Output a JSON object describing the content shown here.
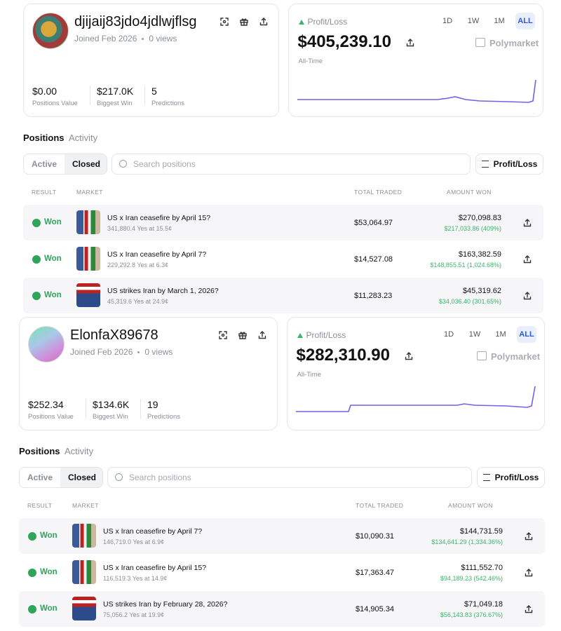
{
  "profiles": [
    {
      "username": "djijaij83jdo4jdlwjflsg",
      "joined": "Joined Feb 2026",
      "views": "0 views",
      "stats": [
        {
          "value": "$0.00",
          "label": "Positions Value"
        },
        {
          "value": "$217.0K",
          "label": "Biggest Win"
        },
        {
          "value": "5",
          "label": "Predictions"
        }
      ],
      "pnl": {
        "label": "Profit/Loss",
        "value": "$405,239.10",
        "brand": "Polymarket",
        "caption": "All-Time",
        "timeframes": [
          "1D",
          "1W",
          "1M",
          "ALL"
        ]
      },
      "tabs": [
        "Positions",
        "Activity"
      ],
      "filters": [
        "Active",
        "Closed"
      ],
      "search": "Search positions",
      "sort": "Profit/Loss",
      "headers": [
        "RESULT",
        "MARKET",
        "TOTAL TRADED",
        "AMOUNT WON"
      ],
      "rows": [
        {
          "result": "Won",
          "title": "US x Iran ceasefire by April 15?",
          "detail": "341,880.4 Yes at 15.5¢",
          "total": "$53,064.97",
          "amount": "$270,098.83",
          "profit": "$217,033.86 (409%)"
        },
        {
          "result": "Won",
          "title": "US x Iran ceasefire by April 7?",
          "detail": "229,292.8 Yes at 6.3¢",
          "total": "$14,527.08",
          "amount": "$163,382.59",
          "profit": "$148,855.51 (1,024.68%)"
        },
        {
          "result": "Won",
          "title": "US strikes Iran by March 1, 2026?",
          "detail": "45,319.6 Yes at 24.9¢",
          "total": "$11,283.23",
          "amount": "$45,319.62",
          "profit": "$34,036.40 (301.65%)"
        }
      ]
    },
    {
      "username": "ElonfaX89678",
      "joined": "Joined Feb 2026",
      "views": "0 views",
      "stats": [
        {
          "value": "$252.34",
          "label": "Positions Value"
        },
        {
          "value": "$134.6K",
          "label": "Biggest Win"
        },
        {
          "value": "19",
          "label": "Predictions"
        }
      ],
      "pnl": {
        "label": "Profit/Loss",
        "value": "$282,310.90",
        "brand": "Polymarket",
        "caption": "All-Time",
        "timeframes": [
          "1D",
          "1W",
          "1M",
          "ALL"
        ]
      },
      "tabs": [
        "Positions",
        "Activity"
      ],
      "filters": [
        "Active",
        "Closed"
      ],
      "search": "Search positions",
      "sort": "Profit/Loss",
      "headers": [
        "RESULT",
        "MARKET",
        "TOTAL TRADED",
        "AMOUNT WON"
      ],
      "rows": [
        {
          "result": "Won",
          "title": "US x Iran ceasefire by April 7?",
          "detail": "146,719.0 Yes at 6.9¢",
          "total": "$10,090.31",
          "amount": "$144,731.59",
          "profit": "$134,641.29 (1,334.36%)"
        },
        {
          "result": "Won",
          "title": "US x Iran ceasefire by April 15?",
          "detail": "116,519.3 Yes at 14.9¢",
          "total": "$17,363.47",
          "amount": "$111,552.70",
          "profit": "$94,189.23 (542.46%)"
        },
        {
          "result": "Won",
          "title": "US strikes Iran by February 28, 2026?",
          "detail": "75,056.2 Yes at 19.9¢",
          "total": "$14,905.34",
          "amount": "$71,049.18",
          "profit": "$56,143.83 (376.67%)"
        }
      ]
    }
  ]
}
